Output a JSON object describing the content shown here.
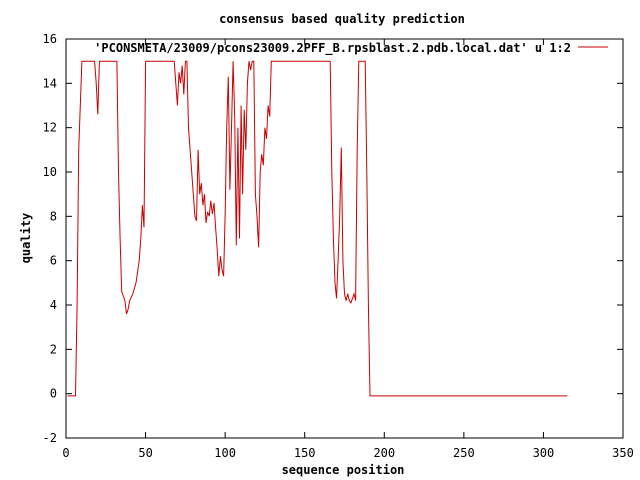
{
  "chart_data": {
    "type": "line",
    "title": "consensus based quality prediction",
    "xlabel": "sequence position",
    "ylabel": "quality",
    "xlim": [
      0,
      350
    ],
    "ylim": [
      -2,
      16
    ],
    "xticks": [
      0,
      50,
      100,
      150,
      200,
      250,
      300,
      350
    ],
    "yticks": [
      -2,
      0,
      2,
      4,
      6,
      8,
      10,
      12,
      14,
      16
    ],
    "grid": false,
    "legend": "top-right",
    "series": [
      {
        "name": "'PCONSMETA/23009/pcons23009.2PFF_B.rpsblast.2.pdb.local.dat' u 1:2",
        "color": "#cc0000",
        "points": [
          [
            1,
            -0.1
          ],
          [
            6,
            -0.1
          ],
          [
            7,
            4
          ],
          [
            8,
            11
          ],
          [
            9,
            13
          ],
          [
            10,
            15
          ],
          [
            18,
            15
          ],
          [
            19,
            14
          ],
          [
            20,
            12.6
          ],
          [
            21,
            15
          ],
          [
            32,
            15
          ],
          [
            33,
            10
          ],
          [
            34,
            7
          ],
          [
            35,
            4.6
          ],
          [
            37,
            4.2
          ],
          [
            38,
            3.6
          ],
          [
            39,
            3.8
          ],
          [
            40,
            4.2
          ],
          [
            42,
            4.5
          ],
          [
            44,
            5
          ],
          [
            46,
            6
          ],
          [
            47,
            7
          ],
          [
            48,
            8.5
          ],
          [
            49,
            7.5
          ],
          [
            50,
            15
          ],
          [
            68,
            15
          ],
          [
            69,
            14
          ],
          [
            70,
            13
          ],
          [
            71,
            14.5
          ],
          [
            72,
            14
          ],
          [
            73,
            14.8
          ],
          [
            74,
            13.5
          ],
          [
            75,
            15
          ],
          [
            76,
            15
          ],
          [
            77,
            12
          ],
          [
            78,
            11
          ],
          [
            79,
            10
          ],
          [
            80,
            9
          ],
          [
            81,
            8
          ],
          [
            82,
            7.8
          ],
          [
            83,
            11
          ],
          [
            84,
            9
          ],
          [
            85,
            9.5
          ],
          [
            86,
            8.5
          ],
          [
            87,
            9
          ],
          [
            88,
            7.7
          ],
          [
            89,
            8.2
          ],
          [
            90,
            8
          ],
          [
            91,
            8.7
          ],
          [
            92,
            8.1
          ],
          [
            93,
            8.6
          ],
          [
            94,
            7.5
          ],
          [
            95,
            6.5
          ],
          [
            96,
            5.3
          ],
          [
            97,
            6.2
          ],
          [
            98,
            5.6
          ],
          [
            99,
            5.3
          ],
          [
            100,
            8
          ],
          [
            101,
            12
          ],
          [
            102,
            14.3
          ],
          [
            103,
            9.2
          ],
          [
            104,
            12
          ],
          [
            105,
            15
          ],
          [
            106,
            12.5
          ],
          [
            107,
            6.7
          ],
          [
            108,
            12
          ],
          [
            109,
            7
          ],
          [
            110,
            13
          ],
          [
            111,
            9
          ],
          [
            112,
            12.8
          ],
          [
            113,
            11
          ],
          [
            114,
            14
          ],
          [
            115,
            15
          ],
          [
            116,
            14.6
          ],
          [
            117,
            15
          ],
          [
            118,
            15
          ],
          [
            119,
            9
          ],
          [
            120,
            8
          ],
          [
            121,
            6.6
          ],
          [
            122,
            10
          ],
          [
            123,
            10.8
          ],
          [
            124,
            10.3
          ],
          [
            125,
            12
          ],
          [
            126,
            11.5
          ],
          [
            127,
            13
          ],
          [
            128,
            12.5
          ],
          [
            129,
            15
          ],
          [
            166,
            15
          ],
          [
            167,
            10
          ],
          [
            168,
            7
          ],
          [
            169,
            5
          ],
          [
            170,
            4.3
          ],
          [
            171,
            6
          ],
          [
            172,
            8
          ],
          [
            173,
            11.1
          ],
          [
            174,
            6
          ],
          [
            175,
            4.5
          ],
          [
            176,
            4.2
          ],
          [
            177,
            4.5
          ],
          [
            178,
            4.2
          ],
          [
            179,
            4.1
          ],
          [
            180,
            4.3
          ],
          [
            181,
            4.5
          ],
          [
            182,
            4.2
          ],
          [
            183,
            11
          ],
          [
            184,
            15
          ],
          [
            188,
            15
          ],
          [
            189,
            10
          ],
          [
            190,
            4
          ],
          [
            191,
            -0.1
          ],
          [
            315,
            -0.1
          ]
        ]
      }
    ]
  }
}
